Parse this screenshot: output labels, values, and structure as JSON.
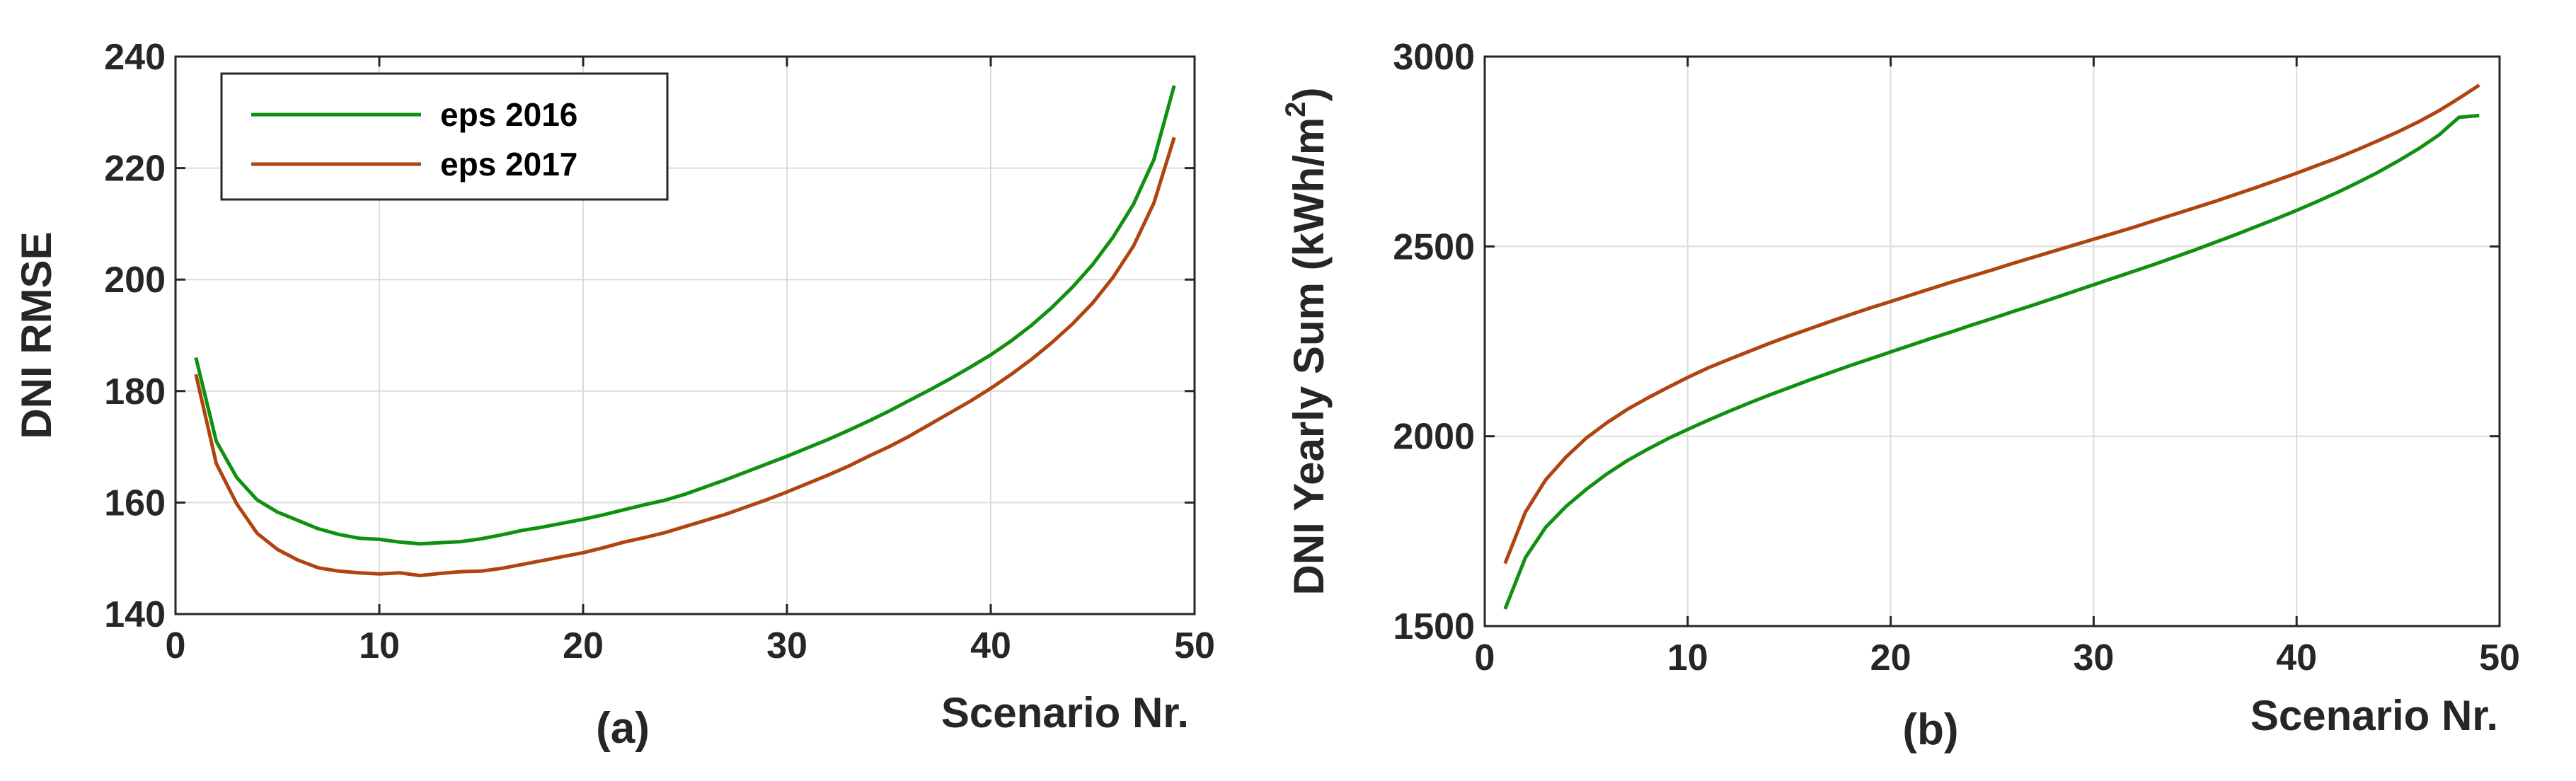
{
  "chart_data": [
    {
      "type": "line",
      "panel_label": "(a)",
      "title": "",
      "xlabel": "Scenario Nr.",
      "ylabel": "DNI RMSE",
      "xlim": [
        0,
        50
      ],
      "ylim": [
        140,
        240
      ],
      "xticks": [
        0,
        10,
        20,
        30,
        40,
        50
      ],
      "yticks": [
        140,
        160,
        180,
        200,
        220,
        240
      ],
      "grid": true,
      "legend_position": "top-left",
      "series": [
        {
          "name": "eps 2016",
          "color": "#109010",
          "x": [
            1,
            2,
            3,
            4,
            5,
            6,
            7,
            8,
            9,
            10,
            11,
            12,
            13,
            14,
            15,
            16,
            17,
            18,
            19,
            20,
            21,
            22,
            23,
            24,
            25,
            26,
            27,
            28,
            29,
            30,
            31,
            32,
            33,
            34,
            35,
            36,
            37,
            38,
            39,
            40,
            41,
            42,
            43,
            44,
            45,
            46,
            47,
            48,
            49
          ],
          "y": [
            186,
            171,
            164.5,
            160.5,
            158.3,
            156.8,
            155.3,
            154.3,
            153.6,
            153.4,
            152.9,
            152.6,
            152.8,
            153.0,
            153.5,
            154.2,
            155.0,
            155.6,
            156.3,
            157.0,
            157.8,
            158.7,
            159.6,
            160.4,
            161.5,
            162.8,
            164.1,
            165.5,
            166.9,
            168.3,
            169.8,
            171.3,
            172.9,
            174.6,
            176.4,
            178.3,
            180.2,
            182.2,
            184.3,
            186.5,
            189.0,
            191.8,
            195.0,
            198.6,
            202.7,
            207.6,
            213.5,
            221.5,
            234.8
          ]
        },
        {
          "name": "eps 2017",
          "color": "#b04410",
          "x": [
            1,
            2,
            3,
            4,
            5,
            6,
            7,
            8,
            9,
            10,
            11,
            12,
            13,
            14,
            15,
            16,
            17,
            18,
            19,
            20,
            21,
            22,
            23,
            24,
            25,
            26,
            27,
            28,
            29,
            30,
            31,
            32,
            33,
            34,
            35,
            36,
            37,
            38,
            39,
            40,
            41,
            42,
            43,
            44,
            45,
            46,
            47,
            48,
            49
          ],
          "y": [
            183,
            167,
            159.8,
            154.5,
            151.6,
            149.7,
            148.3,
            147.7,
            147.4,
            147.2,
            147.4,
            146.9,
            147.3,
            147.6,
            147.7,
            148.2,
            148.9,
            149.6,
            150.3,
            151.0,
            151.9,
            152.9,
            153.7,
            154.6,
            155.7,
            156.8,
            157.9,
            159.2,
            160.5,
            161.9,
            163.4,
            164.9,
            166.5,
            168.3,
            170.0,
            171.9,
            174.0,
            176.1,
            178.2,
            180.5,
            183.0,
            185.7,
            188.7,
            192.0,
            195.8,
            200.4,
            206.0,
            213.7,
            225.5
          ]
        }
      ]
    },
    {
      "type": "line",
      "panel_label": "(b)",
      "title": "",
      "xlabel": "Scenario Nr.",
      "ylabel": "DNI Yearly Sum (kWh/m",
      "ylabel_superscript": "2",
      "ylabel_suffix": ")",
      "xlim": [
        0,
        50
      ],
      "ylim": [
        1500,
        3000
      ],
      "xticks": [
        0,
        10,
        20,
        30,
        40,
        50
      ],
      "yticks": [
        1500,
        2000,
        2500,
        3000
      ],
      "grid": true,
      "series": [
        {
          "name": "eps 2016",
          "color": "#109010",
          "x": [
            1,
            2,
            3,
            4,
            5,
            6,
            7,
            8,
            9,
            10,
            11,
            12,
            13,
            14,
            15,
            16,
            17,
            18,
            19,
            20,
            21,
            22,
            23,
            24,
            25,
            26,
            27,
            28,
            29,
            30,
            31,
            32,
            33,
            34,
            35,
            36,
            37,
            38,
            39,
            40,
            41,
            42,
            43,
            44,
            45,
            46,
            47,
            48,
            49
          ],
          "y": [
            1545,
            1680,
            1760,
            1815,
            1860,
            1900,
            1935,
            1965,
            1993,
            2018,
            2042,
            2065,
            2087,
            2108,
            2128,
            2148,
            2167,
            2186,
            2204,
            2222,
            2240,
            2258,
            2275,
            2293,
            2310,
            2328,
            2345,
            2363,
            2381,
            2399,
            2417,
            2435,
            2453,
            2472,
            2491,
            2511,
            2531,
            2552,
            2573,
            2595,
            2618,
            2642,
            2668,
            2695,
            2725,
            2757,
            2793,
            2840,
            2845
          ]
        },
        {
          "name": "eps 2017",
          "color": "#b04410",
          "x": [
            1,
            2,
            3,
            4,
            5,
            6,
            7,
            8,
            9,
            10,
            11,
            12,
            13,
            14,
            15,
            16,
            17,
            18,
            19,
            20,
            21,
            22,
            23,
            24,
            25,
            26,
            27,
            28,
            29,
            30,
            31,
            32,
            33,
            34,
            35,
            36,
            37,
            38,
            39,
            40,
            41,
            42,
            43,
            44,
            45,
            46,
            47,
            48,
            49
          ],
          "y": [
            1665,
            1800,
            1885,
            1945,
            1995,
            2035,
            2070,
            2100,
            2128,
            2155,
            2180,
            2202,
            2223,
            2244,
            2264,
            2283,
            2302,
            2320,
            2338,
            2355,
            2372,
            2389,
            2406,
            2422,
            2438,
            2455,
            2471,
            2487,
            2503,
            2519,
            2535,
            2551,
            2568,
            2585,
            2602,
            2619,
            2637,
            2655,
            2674,
            2693,
            2713,
            2733,
            2755,
            2778,
            2802,
            2828,
            2857,
            2890,
            2925
          ]
        }
      ]
    }
  ]
}
